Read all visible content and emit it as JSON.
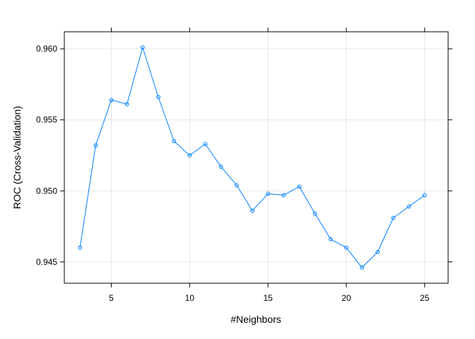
{
  "chart_data": {
    "type": "line",
    "title": "",
    "xlabel": "#Neighbors",
    "ylabel": "ROC (Cross-Validation)",
    "xlim": [
      2,
      26.5
    ],
    "ylim": [
      0.9435,
      0.9612
    ],
    "x_ticks": [
      5,
      10,
      15,
      20,
      25
    ],
    "x_tick_labels": [
      "5",
      "10",
      "15",
      "20",
      "25"
    ],
    "y_ticks": [
      0.945,
      0.95,
      0.955,
      0.96
    ],
    "y_tick_labels": [
      "0.945",
      "0.950",
      "0.955",
      "0.960"
    ],
    "grid": true,
    "legend": "none",
    "line_color": "#0080ff",
    "series": [
      {
        "x": [
          3,
          4,
          5,
          6,
          7,
          8,
          9,
          10,
          11,
          12,
          13,
          14,
          15,
          16,
          17,
          18,
          19,
          20,
          21,
          22,
          23,
          24,
          25
        ],
        "values": [
          0.946,
          0.9532,
          0.9564,
          0.9561,
          0.9601,
          0.9566,
          0.9535,
          0.9525,
          0.9533,
          0.9517,
          0.9504,
          0.9486,
          0.9498,
          0.9497,
          0.9503,
          0.9484,
          0.9466,
          0.946,
          0.9446,
          0.9457,
          0.9481,
          0.9489,
          0.9497
        ]
      }
    ]
  }
}
